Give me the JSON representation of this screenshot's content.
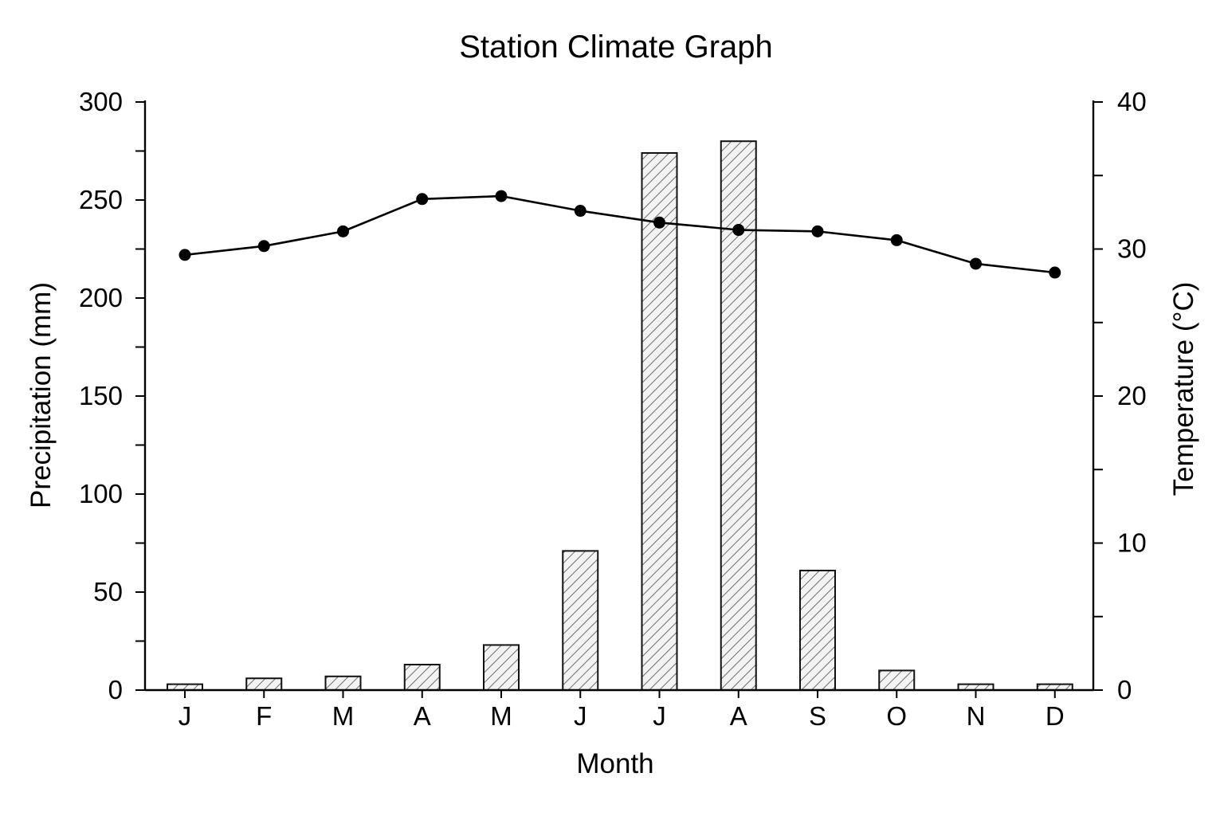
{
  "chart_data": {
    "type": "bar",
    "title": "Station Climate Graph",
    "xlabel": "Month",
    "ylabel": "Precipitation (mm)",
    "y2label": "Temperature (°C)",
    "categories": [
      "J",
      "F",
      "M",
      "A",
      "M",
      "J",
      "J",
      "A",
      "S",
      "O",
      "N",
      "D"
    ],
    "ylim": [
      0,
      300
    ],
    "y2lim": [
      0,
      40
    ],
    "yticks": [
      0,
      50,
      100,
      150,
      200,
      250,
      300
    ],
    "y2ticks": [
      0,
      10,
      20,
      30,
      40
    ],
    "grid": false,
    "series": [
      {
        "type": "bar",
        "axis": "left",
        "values": [
          3,
          6,
          7,
          13,
          23,
          71,
          274,
          280,
          61,
          10,
          3,
          3
        ]
      },
      {
        "type": "line",
        "axis": "right",
        "values": [
          29.6,
          30.2,
          31.2,
          33.4,
          33.6,
          32.6,
          31.8,
          31.3,
          31.2,
          30.6,
          29.0,
          28.4
        ]
      }
    ],
    "colors": {
      "bar_fill": "#f3f3f3",
      "bar_hatch": "#6e6e6e",
      "bar_stroke": "#111111",
      "line": "#000000",
      "marker": "#000000"
    }
  }
}
